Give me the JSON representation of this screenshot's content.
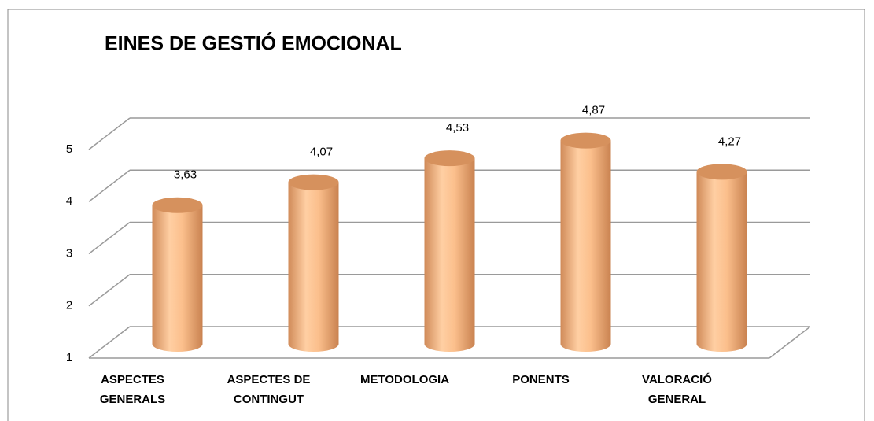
{
  "chart_data": {
    "type": "bar",
    "title": "EINES DE GESTIÓ EMOCIONAL",
    "categories": [
      "ASPECTES GENERALS",
      "ASPECTES DE CONTINGUT",
      "METODOLOGIA",
      "PONENTS",
      "VALORACIÓ GENERAL"
    ],
    "values": [
      3.63,
      4.07,
      4.53,
      4.87,
      4.27
    ],
    "value_labels": [
      "3,63",
      "4,07",
      "4,53",
      "4,87",
      "4,27"
    ],
    "color": "#fbbf8c",
    "ylim": [
      1,
      5
    ],
    "yticks": [
      1,
      2,
      3,
      4,
      5
    ],
    "grid": true
  }
}
